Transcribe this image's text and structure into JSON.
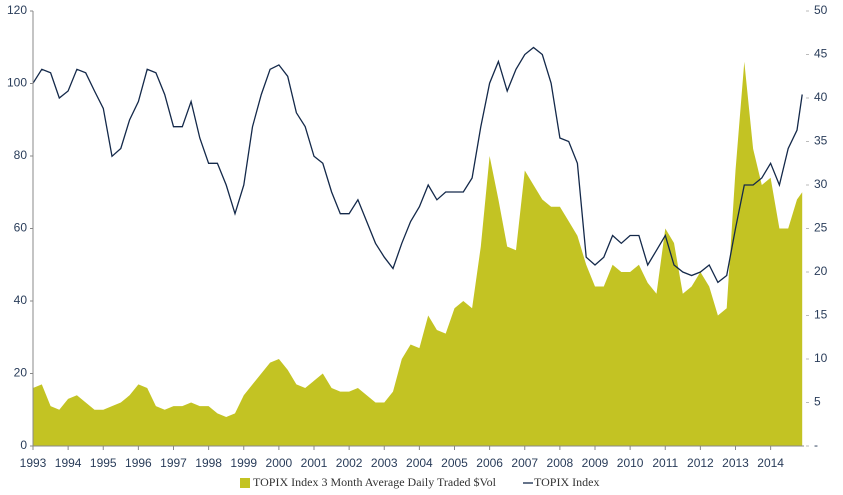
{
  "chart_data": {
    "type": "area-line",
    "x": [
      1993,
      1993.25,
      1993.5,
      1993.75,
      1994,
      1994.25,
      1994.5,
      1994.75,
      1995,
      1995.25,
      1995.5,
      1995.75,
      1996,
      1996.25,
      1996.5,
      1996.75,
      1997,
      1997.25,
      1997.5,
      1997.75,
      1998,
      1998.25,
      1998.5,
      1998.75,
      1999,
      1999.25,
      1999.5,
      1999.75,
      2000,
      2000.25,
      2000.5,
      2000.75,
      2001,
      2001.25,
      2001.5,
      2001.75,
      2002,
      2002.25,
      2002.5,
      2002.75,
      2003,
      2003.25,
      2003.5,
      2003.75,
      2004,
      2004.25,
      2004.5,
      2004.75,
      2005,
      2005.25,
      2005.5,
      2005.75,
      2006,
      2006.25,
      2006.5,
      2006.75,
      2007,
      2007.25,
      2007.5,
      2007.75,
      2008,
      2008.25,
      2008.5,
      2008.75,
      2009,
      2009.25,
      2009.5,
      2009.75,
      2010,
      2010.25,
      2010.5,
      2010.75,
      2011,
      2011.25,
      2011.5,
      2011.75,
      2012,
      2012.25,
      2012.5,
      2012.75,
      2013,
      2013.25,
      2013.5,
      2013.75,
      2014,
      2014.25,
      2014.5,
      2014.75,
      2014.9
    ],
    "series": [
      {
        "name": "TOPIX Index 3 Month Average Daily Traded $Vol",
        "kind": "area",
        "color": "#c3c323",
        "values": [
          16,
          17,
          11,
          10,
          13,
          14,
          12,
          10,
          10,
          11,
          12,
          14,
          17,
          16,
          11,
          10,
          11,
          11,
          12,
          11,
          11,
          9,
          8,
          9,
          14,
          17,
          20,
          23,
          24,
          21,
          17,
          16,
          18,
          20,
          16,
          15,
          15,
          16,
          14,
          12,
          12,
          15,
          24,
          28,
          27,
          36,
          32,
          31,
          38,
          40,
          38,
          55,
          80,
          68,
          55,
          54,
          76,
          72,
          68,
          66,
          66,
          62,
          58,
          50,
          44,
          44,
          50,
          48,
          48,
          50,
          45,
          42,
          60,
          56,
          42,
          44,
          48,
          44,
          36,
          38,
          76,
          106,
          82,
          72,
          74,
          60,
          60,
          68,
          70
        ]
      },
      {
        "name": "TOPIX Index",
        "kind": "line",
        "axis": "y2",
        "color": "#14294a",
        "values": [
          41.7,
          43.3,
          42.9,
          40,
          40.8,
          43.3,
          42.9,
          40.8,
          38.8,
          33.3,
          34.2,
          37.5,
          39.6,
          43.3,
          42.9,
          40.4,
          36.7,
          36.7,
          39.6,
          35.4,
          32.5,
          32.5,
          30,
          26.7,
          30,
          36.7,
          40.4,
          43.3,
          43.8,
          42.5,
          38.3,
          36.7,
          33.3,
          32.5,
          29.2,
          26.7,
          26.7,
          28.3,
          25.8,
          23.3,
          21.7,
          20.4,
          23.3,
          25.8,
          27.5,
          30,
          28.3,
          29.2,
          29.2,
          29.2,
          30.8,
          36.7,
          41.7,
          44.2,
          40.8,
          43.3,
          45,
          45.8,
          45,
          41.7,
          35.4,
          35,
          32.5,
          21.7,
          20.8,
          21.7,
          24.2,
          23.3,
          24.2,
          24.2,
          20.8,
          22.5,
          24.2,
          20.8,
          20,
          19.6,
          20,
          20.8,
          18.8,
          19.6,
          25,
          30,
          30,
          30.8,
          32.5,
          30,
          34.2,
          36.3,
          40.4
        ]
      }
    ],
    "xlim": [
      1993,
      2014.95
    ],
    "xticks": [
      1993,
      1994,
      1995,
      1996,
      1997,
      1998,
      1999,
      2000,
      2001,
      2002,
      2003,
      2004,
      2005,
      2006,
      2007,
      2008,
      2009,
      2010,
      2011,
      2012,
      2013,
      2014
    ],
    "ylim": [
      0,
      120
    ],
    "yticks": [
      0,
      20,
      40,
      60,
      80,
      100,
      120
    ],
    "y2lim": [
      0,
      50
    ],
    "y2ticks": [
      {
        "value": 0,
        "label": "-"
      },
      5,
      10,
      15,
      20,
      25,
      30,
      35,
      40,
      45,
      50
    ],
    "grid": false,
    "legend": "bottom"
  }
}
